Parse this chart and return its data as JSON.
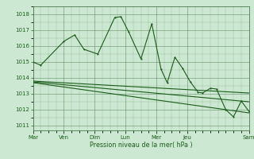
{
  "bg_color": "#cde8d2",
  "grid_color": "#4a7a4a",
  "line_color": "#1a5c1a",
  "ylabel_values": [
    1011,
    1012,
    1013,
    1014,
    1015,
    1016,
    1017,
    1018
  ],
  "xlabel": "Pression niveau de la mer( hPa )",
  "ylim": [
    1010.7,
    1018.5
  ],
  "xlim": [
    0,
    14
  ],
  "line1_x": [
    0,
    0.5,
    2,
    2.7,
    3.3,
    4.2,
    5.3,
    5.7,
    6.2,
    7.0,
    7.7,
    8.3,
    8.7,
    9.2,
    9.7,
    10.2,
    10.7,
    11.0,
    11.5,
    11.9,
    12.5,
    13.0,
    13.5,
    14.0
  ],
  "line1_y": [
    1015.0,
    1014.8,
    1016.3,
    1016.7,
    1015.8,
    1015.5,
    1017.8,
    1017.85,
    1016.9,
    1015.2,
    1017.4,
    1014.55,
    1013.7,
    1015.3,
    1014.6,
    1013.75,
    1013.1,
    1013.05,
    1013.35,
    1013.3,
    1012.0,
    1011.55,
    1012.55,
    1011.9
  ],
  "line2_x": [
    0,
    14
  ],
  "line2_y": [
    1013.8,
    1013.05
  ],
  "line3_x": [
    0,
    14
  ],
  "line3_y": [
    1013.75,
    1012.5
  ],
  "line4_x": [
    0,
    14
  ],
  "line4_y": [
    1013.7,
    1011.8
  ],
  "day_labels": [
    "Mar",
    "Ven",
    "Dim",
    "Lun",
    "Mer",
    "Jeu",
    "Sam"
  ],
  "day_tick_x": [
    0,
    2,
    4,
    6,
    8,
    10,
    14
  ]
}
